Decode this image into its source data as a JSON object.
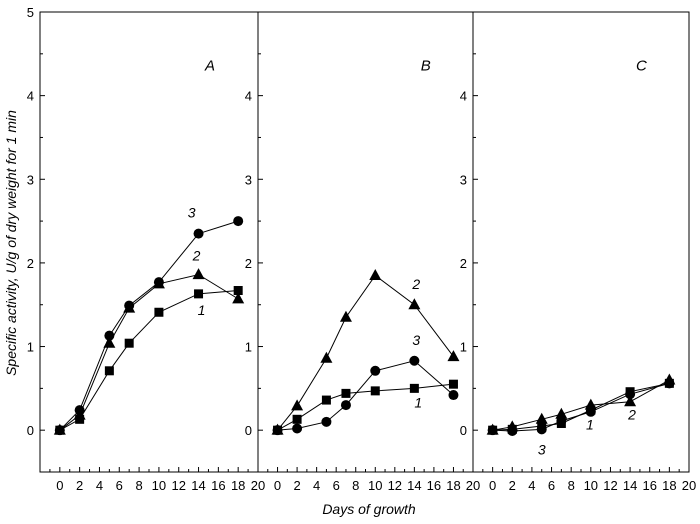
{
  "chart_data": {
    "type": "line",
    "xlabel": "Days of growth",
    "ylabel": "Specific activity, U/g of dry weight for 1 min",
    "x_ticks": [
      0,
      2,
      4,
      6,
      8,
      10,
      12,
      14,
      16,
      18,
      20
    ],
    "y_ticks": [
      0,
      1,
      2,
      3,
      4,
      5
    ],
    "xlim": [
      -2,
      20
    ],
    "ylim": [
      -0.5,
      5
    ],
    "markers": {
      "1": "square",
      "2": "triangle",
      "3": "circle"
    },
    "panels": [
      {
        "label": "A",
        "series": [
          {
            "name": "1",
            "x": [
              0,
              2,
              5,
              7,
              10,
              14,
              18
            ],
            "y": [
              0,
              0.13,
              0.71,
              1.04,
              1.41,
              1.63,
              1.67
            ]
          },
          {
            "name": "2",
            "x": [
              0,
              2,
              5,
              7,
              10,
              14,
              18
            ],
            "y": [
              0,
              0.18,
              1.04,
              1.46,
              1.75,
              1.86,
              1.57
            ]
          },
          {
            "name": "3",
            "x": [
              0,
              2,
              5,
              7,
              10,
              14,
              18
            ],
            "y": [
              0,
              0.24,
              1.13,
              1.49,
              1.77,
              2.35,
              2.5
            ]
          }
        ],
        "series_labels": [
          {
            "text": "1",
            "x": 14.3,
            "y": 1.38
          },
          {
            "text": "2",
            "x": 13.8,
            "y": 2.03
          },
          {
            "text": "3",
            "x": 13.3,
            "y": 2.54
          }
        ]
      },
      {
        "label": "B",
        "series": [
          {
            "name": "1",
            "x": [
              0,
              2,
              5,
              7,
              10,
              14,
              18
            ],
            "y": [
              0,
              0.13,
              0.36,
              0.44,
              0.47,
              0.5,
              0.55
            ]
          },
          {
            "name": "2",
            "x": [
              0,
              2,
              5,
              7,
              10,
              14,
              18
            ],
            "y": [
              0,
              0.29,
              0.86,
              1.35,
              1.85,
              1.5,
              0.88
            ]
          },
          {
            "name": "3",
            "x": [
              0,
              2,
              5,
              7,
              10,
              14,
              18
            ],
            "y": [
              0,
              0.02,
              0.1,
              0.3,
              0.71,
              0.83,
              0.42
            ]
          }
        ],
        "series_labels": [
          {
            "text": "1",
            "x": 14.4,
            "y": 0.27
          },
          {
            "text": "2",
            "x": 14.2,
            "y": 1.69
          },
          {
            "text": "3",
            "x": 14.2,
            "y": 1.02
          }
        ]
      },
      {
        "label": "C",
        "series": [
          {
            "name": "1",
            "x": [
              0,
              2,
              5,
              7,
              10,
              14,
              18
            ],
            "y": [
              0,
              0.01,
              0.05,
              0.08,
              0.24,
              0.46,
              0.56
            ]
          },
          {
            "name": "2",
            "x": [
              0,
              2,
              5,
              7,
              10,
              14,
              18
            ],
            "y": [
              0,
              0.04,
              0.13,
              0.19,
              0.3,
              0.34,
              0.6
            ]
          },
          {
            "name": "3",
            "x": [
              0,
              2,
              5,
              7,
              10,
              14,
              18
            ],
            "y": [
              0,
              -0.01,
              0.01,
              0.11,
              0.22,
              0.43,
              0.56
            ]
          }
        ],
        "series_labels": [
          {
            "text": "1",
            "x": 9.9,
            "y": 0.01
          },
          {
            "text": "2",
            "x": 14.2,
            "y": 0.13
          },
          {
            "text": "3",
            "x": 5.0,
            "y": -0.29
          }
        ]
      }
    ]
  }
}
